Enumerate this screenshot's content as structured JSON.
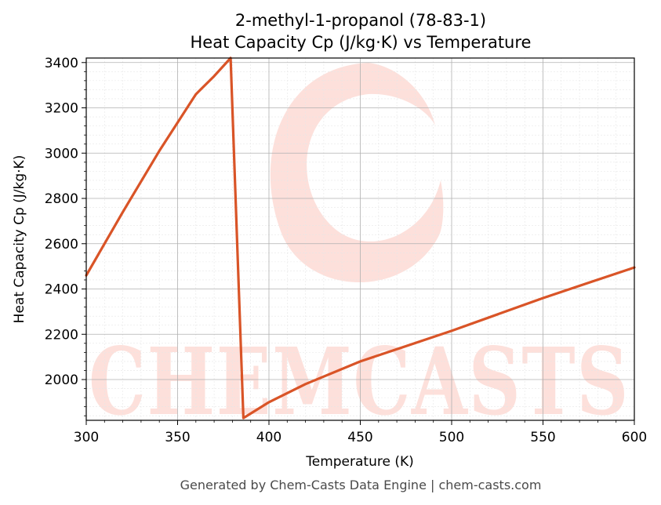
{
  "chart_data": {
    "type": "line",
    "title": "2-methyl-1-propanol (78-83-1)",
    "subtitle": "Heat Capacity Cp (J/kg·K) vs Temperature",
    "xlabel": "Temperature (K)",
    "ylabel": "Heat Capacity Cp (J/kg·K)",
    "xlim": [
      300,
      600
    ],
    "ylim": [
      1820,
      3420
    ],
    "x_ticks": [
      300,
      350,
      400,
      450,
      500,
      550,
      600
    ],
    "y_ticks": [
      2000,
      2200,
      2400,
      2600,
      2800,
      3000,
      3200,
      3400
    ],
    "grid": true,
    "line_color": "#d95427",
    "series": [
      {
        "x": [
          300,
          320,
          340,
          360,
          370,
          379,
          386,
          400,
          420,
          450,
          500,
          550,
          600
        ],
        "values": [
          2460,
          2740,
          3010,
          3260,
          3340,
          3420,
          1830,
          1900,
          1980,
          2080,
          2215,
          2360,
          2495
        ]
      }
    ],
    "watermark": "CHEMCASTS"
  },
  "footer": "Generated by Chem-Casts Data Engine | chem-casts.com"
}
